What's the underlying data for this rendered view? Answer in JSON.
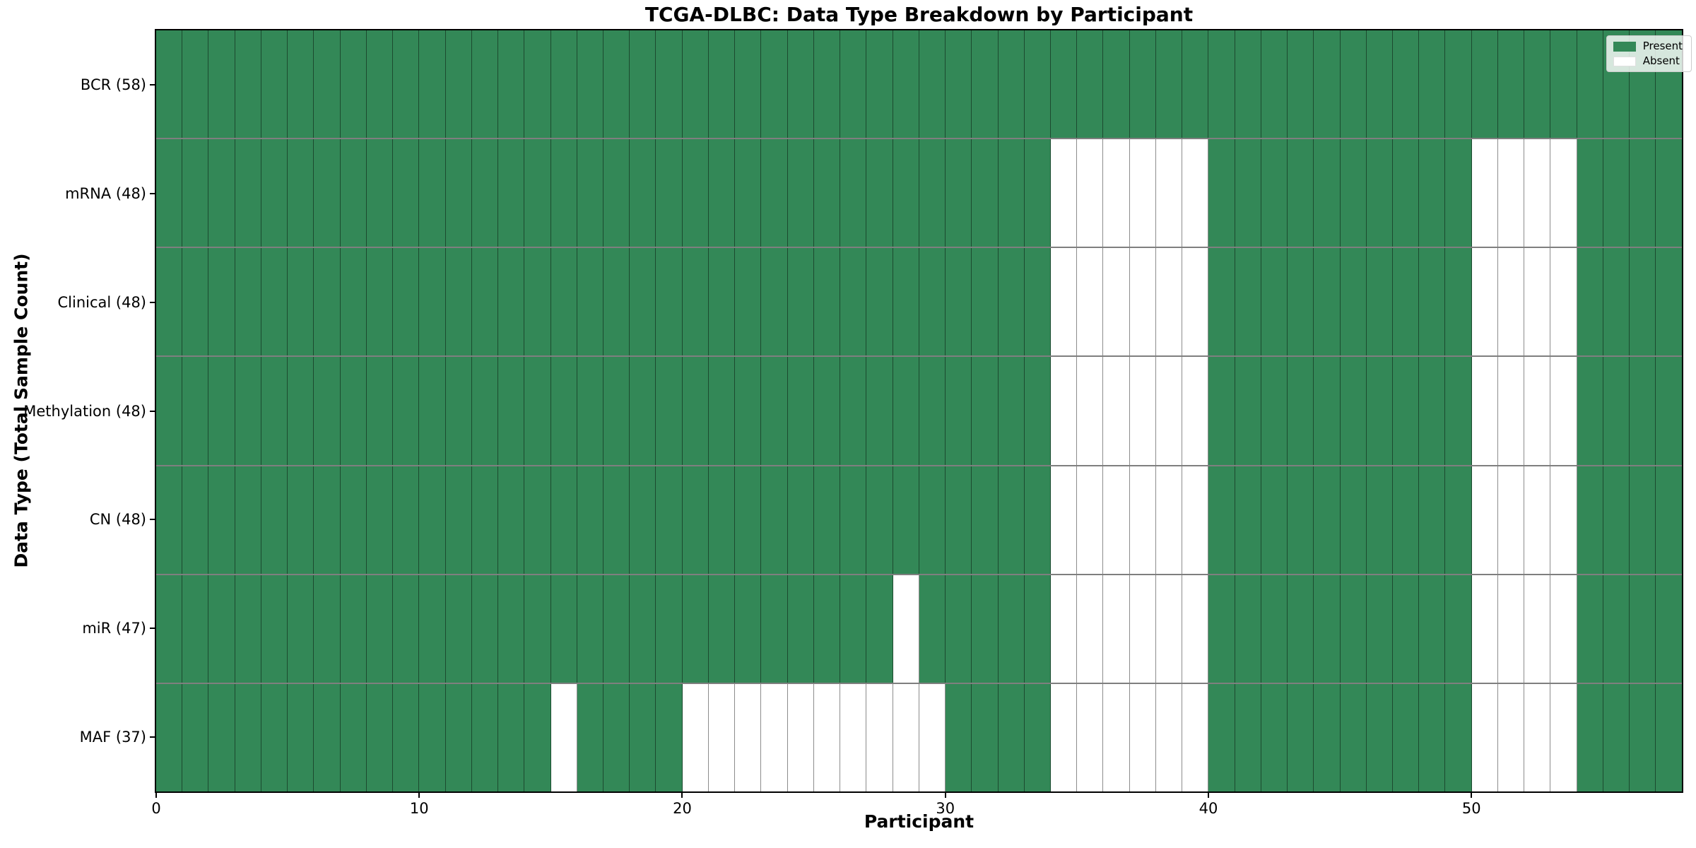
{
  "chart_data": {
    "type": "heatmap",
    "title": "TCGA-DLBC: Data Type Breakdown by Participant",
    "xlabel": "Participant",
    "ylabel": "Data Type (Total Sample Count)",
    "n_participants": 58,
    "x_range": [
      0,
      58
    ],
    "x_ticks": [
      0,
      10,
      20,
      30,
      40,
      50
    ],
    "grid": "cell-edges",
    "legend_position": "upper-right",
    "legend": [
      {
        "name": "present",
        "label": "Present",
        "color": "#338857"
      },
      {
        "name": "absent",
        "label": "Absent",
        "color": "#ffffff"
      }
    ],
    "colors": {
      "present": "#338857",
      "absent": "#ffffff",
      "cell_edge": "rgba(0,0,0,0.45)",
      "spine": "#000000"
    },
    "rows": [
      {
        "label": "BCR (58)",
        "data_type": "BCR",
        "total": 58,
        "absent_participants": []
      },
      {
        "label": "mRNA (48)",
        "data_type": "mRNA",
        "total": 48,
        "absent_participants": [
          34,
          35,
          36,
          37,
          38,
          39,
          50,
          51,
          52,
          53
        ]
      },
      {
        "label": "Clinical (48)",
        "data_type": "Clinical",
        "total": 48,
        "absent_participants": [
          34,
          35,
          36,
          37,
          38,
          39,
          50,
          51,
          52,
          53
        ]
      },
      {
        "label": "Methylation (48)",
        "data_type": "Methylation",
        "total": 48,
        "absent_participants": [
          34,
          35,
          36,
          37,
          38,
          39,
          50,
          51,
          52,
          53
        ]
      },
      {
        "label": "CN (48)",
        "data_type": "CN",
        "total": 48,
        "absent_participants": [
          34,
          35,
          36,
          37,
          38,
          39,
          50,
          51,
          52,
          53
        ]
      },
      {
        "label": "miR (47)",
        "data_type": "miR",
        "total": 47,
        "absent_participants": [
          28,
          34,
          35,
          36,
          37,
          38,
          39,
          50,
          51,
          52,
          53
        ]
      },
      {
        "label": "MAF (37)",
        "data_type": "MAF",
        "total": 37,
        "absent_participants": [
          15,
          20,
          21,
          22,
          23,
          24,
          25,
          26,
          27,
          28,
          29,
          34,
          35,
          36,
          37,
          38,
          39,
          50,
          51,
          52,
          53
        ]
      }
    ]
  }
}
